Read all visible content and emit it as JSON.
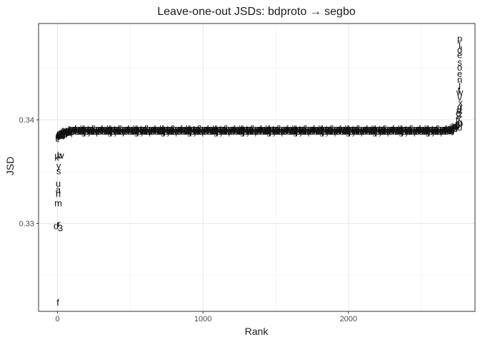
{
  "chart_data": {
    "type": "scatter",
    "title": "Leave-one-out JSDs: bdproto → segbo",
    "xlabel": "Rank",
    "ylabel": "JSD",
    "xlim": [
      -130,
      2870
    ],
    "ylim": [
      0.3215,
      0.3493
    ],
    "x_ticks": [
      0,
      1000,
      2000
    ],
    "y_ticks": [
      0.33,
      0.34
    ],
    "x_tick_labels": [
      "0",
      "1000",
      "2000"
    ],
    "y_tick_labels": [
      "0.33",
      "0.34"
    ],
    "grid": true,
    "marker": "text",
    "plateau": {
      "x_start": 100,
      "x_end": 2660,
      "y": 0.339
    },
    "points": [
      {
        "label": "f",
        "x": 3,
        "y": 0.3224
      },
      {
        "label": "3",
        "x": 20,
        "y": 0.3296
      },
      {
        "label": "d",
        "x": -10,
        "y": 0.3298
      },
      {
        "label": "r",
        "x": 10,
        "y": 0.33
      },
      {
        "label": "m",
        "x": 5,
        "y": 0.332
      },
      {
        "label": "n",
        "x": 5,
        "y": 0.3329
      },
      {
        "label": "a",
        "x": 5,
        "y": 0.3333
      },
      {
        "label": "u",
        "x": 5,
        "y": 0.3339
      },
      {
        "label": "s",
        "x": 8,
        "y": 0.3351
      },
      {
        "label": "y",
        "x": 8,
        "y": 0.3356
      },
      {
        "label": "k",
        "x": -5,
        "y": 0.3364
      },
      {
        "label": "b",
        "x": 14,
        "y": 0.3366
      },
      {
        "label": "w",
        "x": 22,
        "y": 0.3366
      },
      {
        "label": "p",
        "x": 2765,
        "y": 0.3479
      },
      {
        "label": "l",
        "x": 2765,
        "y": 0.3472
      },
      {
        "label": "d",
        "x": 2765,
        "y": 0.3468
      },
      {
        "label": "e",
        "x": 2765,
        "y": 0.3463
      },
      {
        "label": "s",
        "x": 2765,
        "y": 0.3456
      },
      {
        "label": "o",
        "x": 2765,
        "y": 0.3451
      },
      {
        "label": "e",
        "x": 2765,
        "y": 0.3445
      },
      {
        "label": "n",
        "x": 2765,
        "y": 0.3439
      },
      {
        "label": "j",
        "x": 2765,
        "y": 0.3434
      },
      {
        "label": "t",
        "x": 2760,
        "y": 0.3429
      },
      {
        "label": "w",
        "x": 2765,
        "y": 0.3427
      },
      {
        "label": "v",
        "x": 2765,
        "y": 0.3422
      },
      {
        "label": "x",
        "x": 2770,
        "y": 0.3417
      },
      {
        "label": "g",
        "x": 2765,
        "y": 0.3413
      },
      {
        "label": "d",
        "x": 2760,
        "y": 0.341
      },
      {
        "label": "e",
        "x": 2755,
        "y": 0.3407
      },
      {
        "label": "z",
        "x": 2770,
        "y": 0.3406
      },
      {
        "label": "y",
        "x": 2760,
        "y": 0.3403
      },
      {
        "label": "f",
        "x": 2745,
        "y": 0.34
      },
      {
        "label": "q",
        "x": 2765,
        "y": 0.3398
      },
      {
        "label": "p",
        "x": 2770,
        "y": 0.3397
      },
      {
        "label": "b",
        "x": 2750,
        "y": 0.3395
      },
      {
        "label": "o",
        "x": 2765,
        "y": 0.3393
      }
    ]
  }
}
